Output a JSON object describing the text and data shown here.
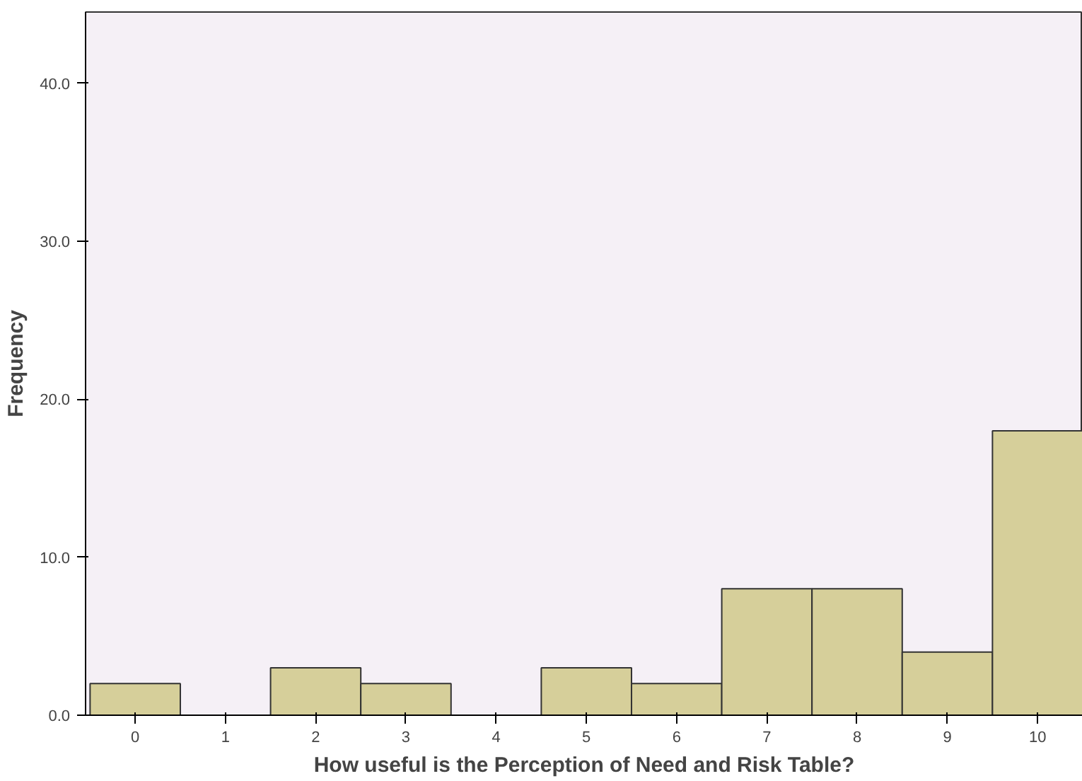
{
  "chart_data": {
    "type": "histogram",
    "xlabel": "How useful is the Perception of Need and Risk Table?",
    "ylabel": "Frequency",
    "bins": [
      -0.5,
      0.5,
      1.5,
      2.5,
      3.5,
      4.5,
      5.5,
      6.5,
      7.5,
      8.5,
      9.5,
      10.5
    ],
    "values": [
      2,
      0,
      3,
      2,
      0,
      3,
      2,
      8,
      8,
      4,
      18
    ],
    "color": "#d6cf9a",
    "xlim": [
      -0.55,
      10.5
    ],
    "ylim": [
      0,
      44.5
    ],
    "xticks": [
      0,
      1,
      2,
      3,
      4,
      5,
      6,
      7,
      8,
      9,
      10
    ],
    "yticks": [
      {
        "value": 0,
        "label": "0.0"
      },
      {
        "value": 10,
        "label": "10.0"
      },
      {
        "value": 20,
        "label": "20.0"
      },
      {
        "value": 30,
        "label": "30.0"
      },
      {
        "value": 40,
        "label": "40.0"
      }
    ],
    "grid": false
  }
}
